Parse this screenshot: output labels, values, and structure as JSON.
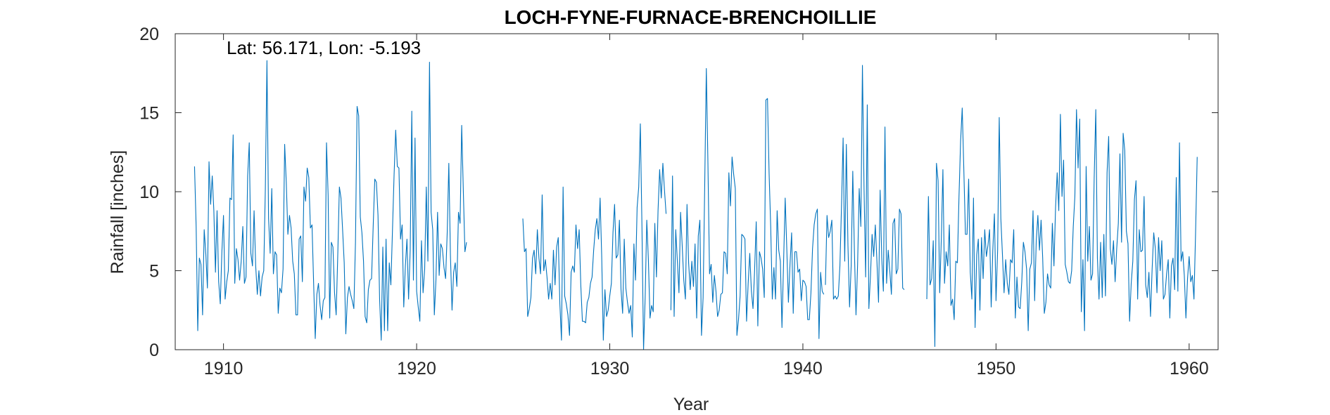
{
  "chart_data": {
    "type": "line",
    "title": "LOCH-FYNE-FURNACE-BRENCHOILLIE",
    "annotation": "Lat: 56.171, Lon: -5.193",
    "xlabel": "Year",
    "ylabel": "Rainfall [inches]",
    "xlim": [
      1907.5,
      1961.5
    ],
    "ylim": [
      0,
      20
    ],
    "xticks": [
      1910,
      1920,
      1930,
      1940,
      1950,
      1960
    ],
    "yticks": [
      0,
      5,
      10,
      15,
      20
    ],
    "xtick_labels": [
      "1910",
      "1920",
      "1930",
      "1940",
      "1950",
      "1960"
    ],
    "ytick_labels": [
      "0",
      "5",
      "10",
      "15",
      "20"
    ],
    "grid": false,
    "series": [
      {
        "color": "#0072BD",
        "segments": [
          {
            "x_start": "1908-07",
            "step": "monthly",
            "values": [
              11.6,
              7.8,
              1.2,
              5.8,
              5.4,
              2.2,
              7.6,
              6.1,
              3.9,
              11.9,
              9.2,
              11.0,
              8.8,
              4.9,
              8.8,
              4.3,
              2.9,
              6.2,
              8.5,
              3.2,
              4.3,
              5.0,
              9.6,
              9.5,
              13.6,
              4.2,
              6.4,
              5.7,
              4.4,
              5.6,
              7.8,
              4.2,
              4.6,
              11.0,
              13.1,
              6.1,
              5.3,
              8.8,
              5.3,
              3.5,
              5.0,
              3.4,
              4.6,
              5.0,
              10.2,
              18.3,
              8.3,
              6.1,
              10.2,
              4.8,
              6.2,
              6.0,
              2.3,
              3.9,
              3.6,
              5.1,
              13.0,
              10.6,
              7.3,
              8.5,
              7.7,
              5.6,
              4.8,
              2.2,
              2.2,
              7.0,
              7.2,
              4.3,
              10.3,
              9.4,
              11.5,
              10.9,
              7.7,
              7.9,
              4.2,
              0.7,
              3.5,
              4.2,
              2.8,
              1.9,
              3.1,
              3.3,
              13.1,
              9.8,
              2.0,
              6.8,
              6.5,
              3.6,
              2.2,
              6.0,
              10.3,
              9.6,
              7.6,
              5.5,
              1.0,
              3.3,
              4.0,
              3.5,
              3.1,
              2.6,
              6.8,
              15.4,
              14.8,
              8.4,
              7.4,
              5.6,
              2.1,
              1.7,
              3.8,
              4.4,
              4.5,
              7.8,
              10.8,
              10.6,
              8.5,
              3.2,
              0.6,
              6.5,
              1.2,
              7.0,
              1.2,
              5.5,
              4.1,
              7.6,
              11.1,
              13.9,
              11.6,
              11.5,
              7.0,
              7.9,
              2.7,
              5.3,
              7.0,
              3.2,
              6.3,
              15.1,
              4.4,
              13.4,
              3.7,
              2.7,
              1.8,
              6.9,
              3.6,
              5.1,
              10.3,
              5.6,
              18.2,
              8.7,
              7.6,
              2.2,
              4.4,
              8.7,
              4.7,
              6.7,
              6.4,
              5.2,
              4.5,
              7.4,
              11.8,
              6.0,
              2.5,
              4.9,
              5.5,
              4.0,
              8.7,
              8.0,
              14.2,
              10.1,
              6.2,
              6.8
            ]
          },
          {
            "x_start": "1925-07",
            "step": "monthly",
            "values": [
              8.3,
              6.2,
              6.4,
              2.1,
              2.6,
              3.3,
              5.8,
              6.3,
              4.8,
              7.6,
              5.8,
              4.8,
              9.8,
              5.0,
              5.7,
              4.6,
              3.2,
              4.2,
              3.2,
              6.3,
              4.1,
              6.5,
              7.1,
              2.9,
              0.6,
              10.3,
              3.4,
              2.9,
              2.2,
              0.9,
              4.9,
              5.3,
              4.9,
              7.9,
              6.4,
              7.6,
              4.1,
              1.8,
              1.8,
              1.7,
              3.0,
              3.3,
              4.2,
              4.6,
              6.3,
              7.6,
              8.3,
              7.0,
              9.6,
              5.9,
              0.6,
              3.8,
              2.1,
              2.5,
              3.4,
              4.2,
              7.4,
              9.2,
              5.8,
              6.0,
              8.2,
              3.8,
              2.3,
              7.0,
              3.9,
              3.0,
              2.3,
              2.8,
              0.8,
              6.7,
              4.4,
              9.0,
              10.3,
              14.3,
              7.8,
              0.0,
              3.3,
              8.2,
              5.7,
              2.0,
              2.8,
              2.4,
              8.0,
              4.6,
              8.8,
              11.4,
              9.6,
              11.8,
              10.1,
              8.6
            ]
          },
          {
            "x_start": "1933-03",
            "step": "monthly",
            "values": [
              2.5,
              11.0,
              2.1,
              7.6,
              5.6,
              3.6,
              8.7,
              6.6,
              4.4,
              3.2,
              9.2,
              5.5,
              3.8,
              5.6,
              4.0,
              6.7,
              2.0,
              7.2,
              8.2,
              0.9,
              3.3,
              10.4,
              17.8,
              11.8,
              4.8,
              5.4,
              3.0,
              4.7,
              3.7,
              2.1,
              2.5,
              3.5,
              3.6,
              6.2,
              6.1,
              4.8,
              11.2,
              9.1,
              12.2,
              11.1,
              10.2,
              0.9,
              1.9,
              3.4,
              7.3,
              7.2,
              7.0,
              1.8,
              4.2,
              6.1,
              3.7,
              2.6,
              5.0,
              8.1,
              1.5,
              6.2,
              5.8,
              5.1,
              3.3,
              15.8,
              15.9,
              11.2,
              7.8,
              3.2,
              5.2,
              3.2,
              8.8,
              6.3,
              5.6,
              1.4,
              5.5,
              9.6,
              6.4,
              3.0,
              5.4,
              7.4,
              2.3,
              6.2,
              6.2,
              4.9,
              5.1,
              3.1,
              4.4,
              4.3,
              4.0,
              1.9,
              1.9,
              3.6,
              6.4,
              7.9,
              8.6,
              8.9,
              0.7,
              4.9,
              3.7,
              3.5
            ]
          },
          {
            "x_start": "1941-03",
            "step": "monthly",
            "values": [
              4.1,
              8.5,
              7.1,
              7.5,
              8.2,
              3.2,
              3.4,
              3.2,
              3.4,
              5.3,
              9.1,
              13.4,
              5.6,
              13.0,
              6.6,
              2.7,
              5.3,
              11.3,
              6.3,
              2.2,
              5.4,
              10.2,
              7.8,
              18.0,
              10.2,
              4.6,
              15.5,
              2.6,
              4.7,
              7.3,
              5.9,
              7.9,
              5.6,
              3.0,
              10.1,
              5.8,
              3.7,
              14.1,
              4.2,
              6.3,
              5.0,
              3.5,
              8.0,
              8.3,
              4.8,
              5.1,
              8.9,
              8.6,
              3.9,
              3.8
            ]
          },
          {
            "x_start": "1946-06",
            "step": "monthly",
            "values": [
              3.2,
              9.7,
              4.1,
              4.5,
              6.9,
              0.2,
              11.8,
              10.7,
              3.6,
              7.0,
              11.4,
              4.2,
              6.2,
              5.3,
              7.9,
              2.8,
              3.2,
              1.9,
              5.6,
              5.5,
              9.7,
              13.2,
              15.3,
              11.4,
              7.3,
              7.3,
              10.8,
              4.9,
              3.2,
              9.6,
              1.4,
              6.0,
              7.0,
              2.5,
              7.1,
              4.5,
              7.6,
              5.9,
              6.6,
              7.6,
              2.7,
              6.3,
              8.6,
              3.1,
              6.3,
              14.7,
              8.3,
              6.0,
              3.6,
              5.7,
              4.2,
              3.5,
              5.7,
              5.5,
              7.6,
              2.0,
              4.6,
              2.7,
              2.6,
              4.3,
              6.8,
              6.2,
              5.1,
              1.2,
              5.1,
              5.5,
              8.8,
              3.1,
              6.9,
              8.5,
              6.3,
              8.2,
              5.8,
              2.3,
              3.0,
              4.8,
              4.1,
              3.9,
              8.0,
              5.3,
              9.0,
              11.2,
              8.8,
              14.9,
              9.7,
              12.0,
              5.4,
              4.9,
              4.3,
              4.2,
              5.0,
              7.8,
              9.7,
              15.2,
              11.5,
              14.6,
              2.4,
              5.7,
              1.2,
              11.6,
              5.6,
              7.8,
              4.4,
              4.8,
              10.9,
              15.2,
              5.8,
              3.2,
              6.8,
              3.3,
              7.3,
              3.4,
              11.2,
              13.5,
              6.4,
              5.4,
              6.9,
              4.3,
              6.4,
              8.0,
              12.4,
              6.8,
              13.7,
              12.6,
              7.5,
              6.7,
              1.8,
              4.2,
              5.6,
              9.5,
              10.7,
              3.2,
              7.6,
              6.2,
              6.3,
              9.7,
              4.1,
              3.3,
              4.9,
              2.1,
              5.1,
              7.4,
              6.4,
              3.6,
              7.1,
              5.0,
              6.9,
              3.2,
              3.5,
              4.8,
              5.7,
              2.0,
              5.3,
              5.8,
              3.8,
              10.9,
              3.7,
              13.1,
              5.6,
              6.2,
              4.7,
              2.0,
              4.5,
              5.9,
              4.3,
              4.7,
              3.2,
              7.4,
              12.2
            ]
          }
        ]
      }
    ]
  }
}
